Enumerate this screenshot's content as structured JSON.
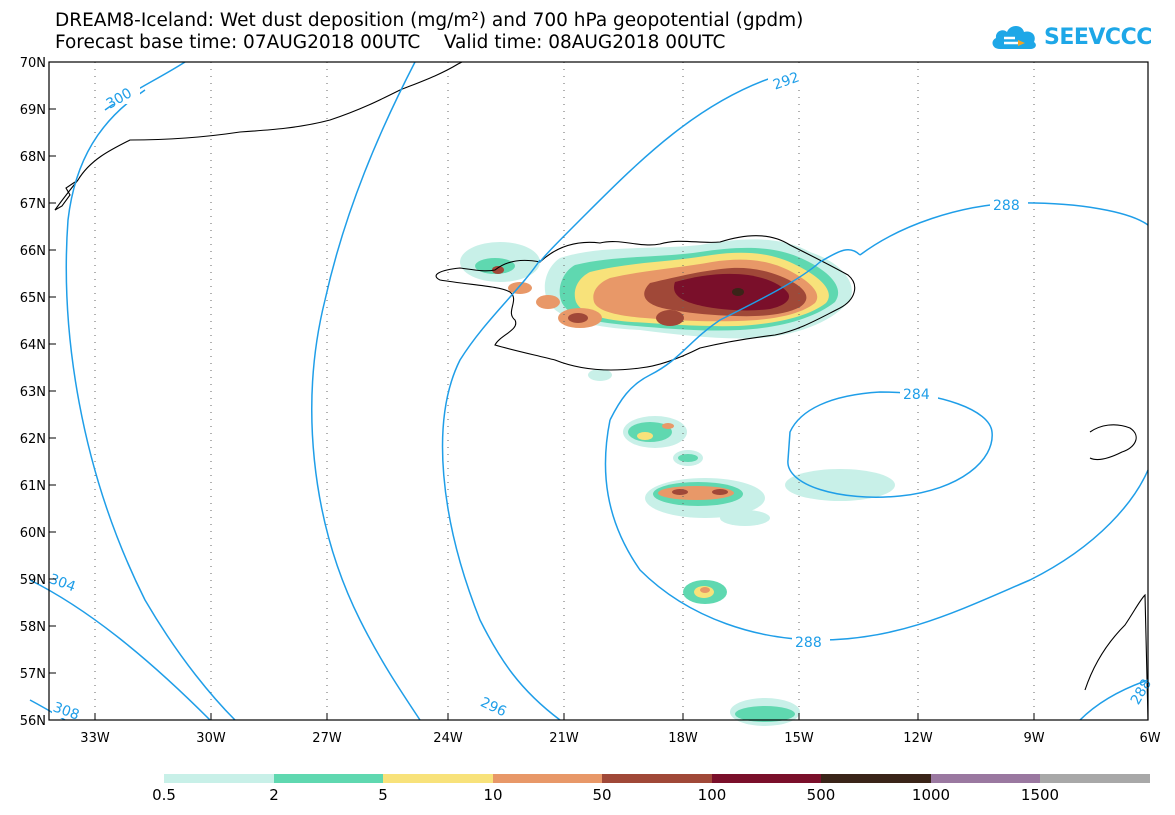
{
  "title": {
    "line1": "DREAM8-Iceland: Wet dust deposition (mg/m²) and 700 hPa geopotential (gpdm)",
    "line2": "Forecast base time: 07AUG2018 00UTC    Valid time: 08AUG2018 00UTC"
  },
  "logo": {
    "text": "SEEVCCC",
    "icon": "cloud-icon",
    "color": "#1ea7e7"
  },
  "map": {
    "lon_range": [
      -34,
      -6
    ],
    "lat_range": [
      56,
      70
    ],
    "lon_ticks": [
      "33W",
      "30W",
      "27W",
      "24W",
      "21W",
      "18W",
      "15W",
      "12W",
      "9W",
      "6W"
    ],
    "lat_ticks": [
      "70N",
      "69N",
      "68N",
      "67N",
      "66N",
      "65N",
      "64N",
      "63N",
      "62N",
      "61N",
      "60N",
      "59N",
      "58N",
      "57N",
      "56N"
    ],
    "contour_color": "#1f9ee8",
    "contour_labels": [
      "300",
      "292",
      "288",
      "284",
      "288",
      "296",
      "304",
      "308",
      "288"
    ]
  },
  "legend": {
    "labels": [
      "0.5",
      "2",
      "5",
      "10",
      "50",
      "100",
      "500",
      "1000",
      "1500"
    ],
    "colors": [
      "#c8f0e8",
      "#5fd8b0",
      "#f8e27a",
      "#e89868",
      "#a04838",
      "#7a0f2a",
      "#3a2418",
      "#9a78a0",
      "#a8a8a8"
    ]
  }
}
